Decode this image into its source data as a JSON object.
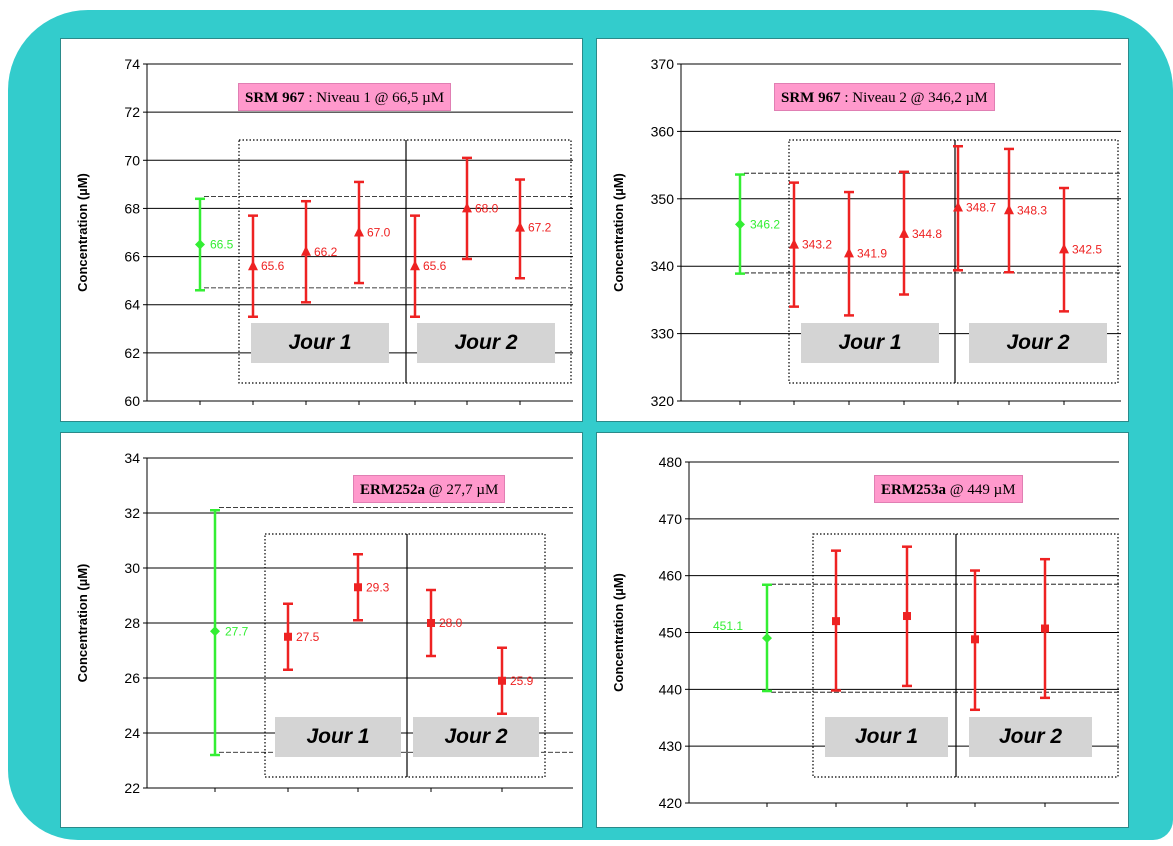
{
  "colors": {
    "frame": "#33cccc",
    "reference": "#33ee33",
    "measured": "#ee2222",
    "badge": "#ff99cc",
    "jour_box": "#d4d4d4"
  },
  "chart_data": [
    {
      "type": "scatter",
      "badge": {
        "name": "SRM 967",
        "desc": " : Niveau 1 @ 66,5 µM"
      },
      "ylabel": "Concentration (µM)",
      "ylim": [
        60,
        74
      ],
      "ytick_step": 2,
      "yticks": [
        "60",
        "62",
        "64",
        "66",
        "68",
        "70",
        "72",
        "74"
      ],
      "reference": {
        "value": 66.5,
        "low": 64.6,
        "high": 68.4,
        "label": "66.5"
      },
      "reference_band": [
        64.7,
        68.5
      ],
      "points": [
        {
          "value": 65.6,
          "low": 63.5,
          "high": 67.7,
          "label": "65.6"
        },
        {
          "value": 66.2,
          "low": 64.1,
          "high": 68.3,
          "label": "66.2"
        },
        {
          "value": 67.0,
          "low": 64.9,
          "high": 69.1,
          "label": "67.0"
        },
        {
          "value": 65.6,
          "low": 63.5,
          "high": 67.7,
          "label": "65.6"
        },
        {
          "value": 68.0,
          "low": 65.9,
          "high": 70.1,
          "label": "68.0"
        },
        {
          "value": 67.2,
          "low": 65.1,
          "high": 69.2,
          "label": "67.2"
        }
      ],
      "marker": "triangle",
      "jour_labels": [
        "Jour 1",
        "Jour 2"
      ]
    },
    {
      "type": "scatter",
      "badge": {
        "name": "SRM 967",
        "desc": " : Niveau 2 @ 346,2 µM"
      },
      "ylabel": "Concentration (µM)",
      "ylim": [
        320,
        370
      ],
      "ytick_step": 10,
      "yticks": [
        "320",
        "330",
        "340",
        "350",
        "360",
        "370"
      ],
      "reference": {
        "value": 346.2,
        "low": 338.9,
        "high": 353.6,
        "label": "346.2"
      },
      "reference_band": [
        339.0,
        353.8
      ],
      "points": [
        {
          "value": 343.2,
          "low": 334.0,
          "high": 352.4,
          "label": "343.2"
        },
        {
          "value": 341.9,
          "low": 332.7,
          "high": 351.0,
          "label": "341.9"
        },
        {
          "value": 344.8,
          "low": 335.8,
          "high": 354.0,
          "label": "344.8"
        },
        {
          "value": 348.7,
          "low": 339.4,
          "high": 357.8,
          "label": "348.7"
        },
        {
          "value": 348.3,
          "low": 339.1,
          "high": 357.4,
          "label": "348.3"
        },
        {
          "value": 342.5,
          "low": 333.3,
          "high": 351.6,
          "label": "342.5"
        }
      ],
      "marker": "triangle",
      "jour_labels": [
        "Jour 1",
        "Jour 2"
      ]
    },
    {
      "type": "scatter",
      "badge": {
        "name": "ERM252a",
        "desc": " @ 27,7 µM"
      },
      "ylabel": "Concentration (µM)",
      "ylim": [
        22,
        34
      ],
      "ytick_step": 2,
      "yticks": [
        "22",
        "24",
        "26",
        "28",
        "30",
        "32",
        "34"
      ],
      "reference": {
        "value": 27.7,
        "low": 23.2,
        "high": 32.1,
        "label": "27.7"
      },
      "reference_band": [
        23.3,
        32.2
      ],
      "points": [
        {
          "value": 27.5,
          "low": 26.3,
          "high": 28.7,
          "label": "27.5"
        },
        {
          "value": 29.3,
          "low": 28.1,
          "high": 30.5,
          "label": "29.3"
        },
        {
          "value": 28.0,
          "low": 26.8,
          "high": 29.2,
          "label": "28.0"
        },
        {
          "value": 25.9,
          "low": 24.7,
          "high": 27.1,
          "label": "25.9"
        }
      ],
      "marker": "square",
      "jour_labels": [
        "Jour 1",
        "Jour 2"
      ]
    },
    {
      "type": "scatter",
      "badge": {
        "name": "ERM253a",
        "desc": " @ 449 µM"
      },
      "ylabel": "Concentration (µM)",
      "ylim": [
        420,
        480
      ],
      "ytick_step": 10,
      "yticks": [
        "420",
        "430",
        "440",
        "450",
        "460",
        "470",
        "480"
      ],
      "reference": {
        "value": 449.0,
        "low": 439.7,
        "high": 458.4,
        "label": "451.1"
      },
      "reference_band": [
        439.5,
        458.5
      ],
      "points": [
        {
          "value": 452.0,
          "low": 439.8,
          "high": 464.4,
          "label": ""
        },
        {
          "value": 452.9,
          "low": 440.6,
          "high": 465.1,
          "label": ""
        },
        {
          "value": 448.8,
          "low": 436.4,
          "high": 460.9,
          "label": ""
        },
        {
          "value": 450.7,
          "low": 438.5,
          "high": 462.9,
          "label": ""
        }
      ],
      "marker": "square",
      "jour_labels": [
        "Jour 1",
        "Jour 2"
      ]
    }
  ]
}
